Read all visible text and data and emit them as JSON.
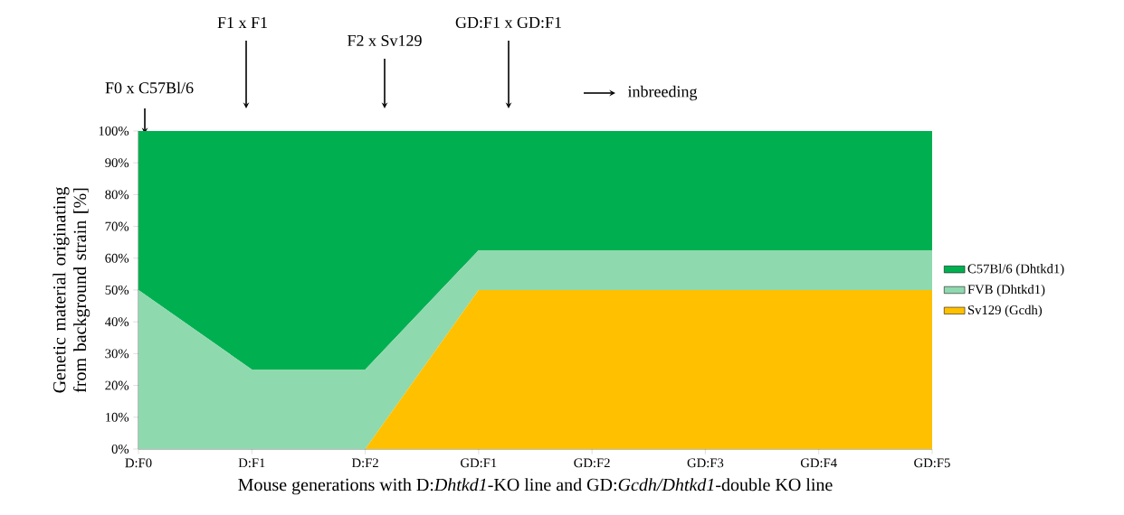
{
  "chart_data": {
    "type": "area",
    "stacked": true,
    "categories": [
      "D:F0",
      "D:F1",
      "D:F2",
      "GD:F1",
      "GD:F2",
      "GD:F3",
      "GD:F4",
      "GD:F5"
    ],
    "series": [
      {
        "name": "Sv129 (Gcdh)",
        "color": "#ffc000",
        "values": [
          0,
          0,
          0,
          50,
          50,
          50,
          50,
          50
        ]
      },
      {
        "name": "FVB (Dhtkd1)",
        "color": "#8fd9ae",
        "values": [
          50,
          25,
          25,
          12.5,
          12.5,
          12.5,
          12.5,
          12.5
        ]
      },
      {
        "name": "C57Bl/6 (Dhtkd1)",
        "color": "#00b050",
        "values": [
          50,
          75,
          75,
          37.5,
          37.5,
          37.5,
          37.5,
          37.5
        ]
      }
    ],
    "ylim": [
      0,
      100
    ],
    "yticks": [
      {
        "value": 0,
        "label": "0%"
      },
      {
        "value": 10,
        "label": "10%"
      },
      {
        "value": 20,
        "label": "20%"
      },
      {
        "value": 30,
        "label": "30%"
      },
      {
        "value": 40,
        "label": "40%"
      },
      {
        "value": 50,
        "label": "50%"
      },
      {
        "value": 60,
        "label": "60%"
      },
      {
        "value": 70,
        "label": "70%"
      },
      {
        "value": 80,
        "label": "80%"
      },
      {
        "value": 90,
        "label": "90%"
      },
      {
        "value": 100,
        "label": "100%"
      }
    ],
    "xlabel": "Mouse generations with D:*Dhtkd1*-KO line and GD:*Gcdh/Dhtkd1*-double KO line",
    "ylabel": "Genetic material originating from background strain [%]",
    "annotations": [
      "F0 x C57Bl/6",
      "F1 x F1",
      "F2 x Sv129",
      "GD:F1 x GD:F1",
      "inbreeding"
    ],
    "legend": "right",
    "marker": "none",
    "line_style": "solid"
  }
}
